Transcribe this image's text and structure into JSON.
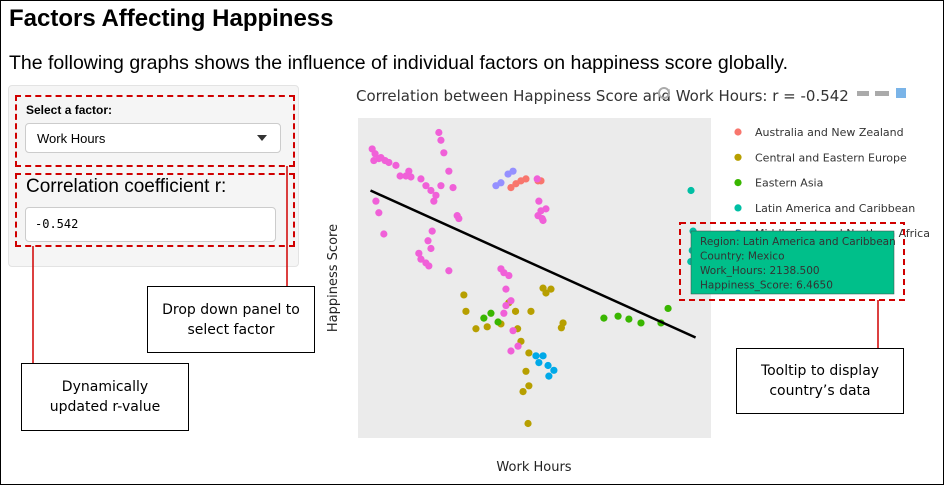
{
  "header": {
    "title": "Factors Affecting Happiness",
    "subtitle": "The following graphs shows the influence of individual factors on happiness score globally."
  },
  "sidebar": {
    "select_label": "Select a factor:",
    "select_value": "Work Hours",
    "r_label": "Correlation coefficient r:",
    "r_value": "-0.542"
  },
  "annotations": [
    "Drop down panel to select factor",
    "Dynamically updated r-value",
    "Tooltip to display country’s data"
  ],
  "tooltip": {
    "lines": [
      "Region: Latin America and Caribbean",
      "Country:  Mexico",
      "Work_Hours: 2138.500",
      "Happiness_Score: 6.4650"
    ]
  },
  "chart_data": {
    "type": "scatter",
    "title": "Correlation between Happiness Score and Work Hours: r = -0.542",
    "x_label": "Work Hours",
    "y_label": "Happiness Score",
    "xlim": [
      1340,
      2187
    ],
    "ylim": [
      4.64,
      7.95
    ],
    "xticks": [
      1400,
      1600,
      1800,
      2000
    ],
    "yticks": [
      5,
      6,
      7
    ],
    "grid": true,
    "series": [
      {
        "name": "Australia and New Zealand",
        "color": "#F8766D",
        "x": [
          1707,
          1719,
          1731,
          1743,
          1772,
          1779
        ],
        "values": [
          7.23,
          7.27,
          7.3,
          7.32,
          7.3,
          7.3
        ]
      },
      {
        "name": "Central and Eastern Europe",
        "color": "#B79F00",
        "x": [
          1594,
          1599,
          1623,
          1650,
          1683,
          1702,
          1718,
          1723,
          1731,
          1750,
          1743,
          1750,
          1736,
          1748,
          1784,
          1791,
          1803,
          1832,
          1828,
          1755
        ],
        "values": [
          6.12,
          5.95,
          5.77,
          5.79,
          5.82,
          6.04,
          5.95,
          5.77,
          5.64,
          5.52,
          5.33,
          5.18,
          5.12,
          4.79,
          6.19,
          6.14,
          6.18,
          5.83,
          5.78,
          5.95
        ]
      },
      {
        "name": "Eastern Asia",
        "color": "#39B600",
        "x": [
          1642,
          1659,
          1676,
          1930,
          1964,
          1990,
          2019,
          2067,
          2084
        ],
        "values": [
          5.88,
          5.93,
          5.84,
          5.88,
          5.9,
          5.87,
          5.83,
          5.83,
          5.98
        ]
      },
      {
        "name": "Latin America and Caribbean",
        "color": "#00BFA4",
        "x": [
          2139,
          2144,
          2151,
          2142,
          2146,
          2138.5
        ],
        "values": [
          7.2,
          6.78,
          6.7,
          6.58,
          6.45,
          6.465
        ]
      },
      {
        "name": "Middle East and Northern Africa",
        "color": "#00A9E8",
        "x": [
          1767,
          1784,
          1774,
          1796,
          1810,
          1798
        ],
        "values": [
          5.49,
          5.49,
          5.42,
          5.39,
          5.34,
          5.28
        ]
      },
      {
        "name": null,
        "color": "#9590FF",
        "x": [
          1671,
          1683,
          1700,
          1712
        ],
        "values": [
          7.25,
          7.28,
          7.37,
          7.4
        ]
      },
      {
        "name": null,
        "color": "#F060D8",
        "x": [
          1374,
          1381,
          1390,
          1405,
          1378,
          1395,
          1414,
          1431,
          1441,
          1455,
          1467,
          1491,
          1462,
          1503,
          1515,
          1527,
          1534,
          1539,
          1546,
          1558,
          1568,
          1539,
          1522,
          1578,
          1582,
          1383,
          1390,
          1402,
          1486,
          1491,
          1503,
          1515,
          1508,
          1518,
          1510,
          1558,
          1683,
          1690,
          1702,
          1695,
          1707,
          1695,
          1712,
          1724,
          1707,
          1690,
          1770,
          1774,
          1779,
          1772,
          1782,
          1784,
          1791
        ],
        "values": [
          7.63,
          7.58,
          7.53,
          7.51,
          7.51,
          7.54,
          7.49,
          7.46,
          7.35,
          7.35,
          7.34,
          7.32,
          7.4,
          7.25,
          7.2,
          7.15,
          7.8,
          7.72,
          7.59,
          7.4,
          7.23,
          7.25,
          7.09,
          6.94,
          6.91,
          7.09,
          6.97,
          6.75,
          6.55,
          6.49,
          6.45,
          6.6,
          6.68,
          6.78,
          6.42,
          6.37,
          6.39,
          6.35,
          6.32,
          6.18,
          6.06,
          6.01,
          5.75,
          5.59,
          5.54,
          5.93,
          7.32,
          7.09,
          6.99,
          6.94,
          6.91,
          6.89,
          7.01
        ]
      }
    ],
    "trend_line": {
      "x": [
        1370,
        2150
      ],
      "y": [
        7.2,
        5.68
      ]
    }
  }
}
